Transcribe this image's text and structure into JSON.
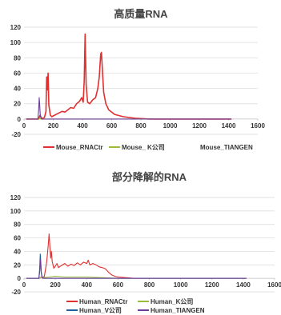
{
  "chart_data": [
    {
      "type": "line",
      "title": "高质量RNA",
      "xlim": [
        0,
        1600
      ],
      "ylim": [
        -20,
        120
      ],
      "xticks": [
        0,
        200,
        400,
        600,
        800,
        1000,
        1200,
        1400,
        1600
      ],
      "yticks": [
        -20,
        0,
        20,
        40,
        60,
        80,
        100,
        120
      ],
      "legend_position": "bottom",
      "series": [
        {
          "name": "Mouse_RNACtr",
          "color": "#e03030",
          "x": [
            15,
            100,
            105,
            110,
            115,
            120,
            130,
            140,
            150,
            155,
            160,
            165,
            170,
            175,
            180,
            190,
            200,
            220,
            240,
            260,
            280,
            300,
            320,
            340,
            360,
            380,
            395,
            405,
            412,
            418,
            425,
            435,
            450,
            470,
            490,
            505,
            515,
            525,
            530,
            535,
            545,
            560,
            580,
            620,
            680,
            760,
            860,
            1000,
            1200,
            1420
          ],
          "y": [
            0,
            0,
            3,
            5,
            3,
            1,
            1,
            2,
            10,
            55,
            38,
            60,
            18,
            12,
            5,
            3,
            4,
            6,
            8,
            10,
            9,
            12,
            15,
            14,
            20,
            23,
            28,
            22,
            50,
            111,
            45,
            22,
            20,
            25,
            28,
            40,
            55,
            85,
            87,
            70,
            35,
            20,
            12,
            6,
            3,
            1,
            0,
            0,
            0,
            0
          ]
        },
        {
          "name": "Mouse_ K公司",
          "color": "#9bbb3b",
          "x": [
            15,
            100,
            108,
            115,
            200,
            400,
            600,
            1000,
            1420
          ],
          "y": [
            0,
            0,
            1,
            0,
            0,
            0,
            0,
            0,
            0
          ]
        },
        {
          "name": "Mouse_TIANGEN",
          "color": "#6a3d9a",
          "x": [
            15,
            95,
            100,
            104,
            107,
            110,
            114,
            120,
            200,
            400,
            600,
            1000,
            1420
          ],
          "y": [
            0,
            0,
            12,
            28,
            20,
            8,
            2,
            0,
            0,
            0,
            0,
            0,
            0
          ]
        }
      ]
    },
    {
      "type": "line",
      "title": "部分降解的RNA",
      "xlim": [
        0,
        1600
      ],
      "ylim": [
        -20,
        120
      ],
      "xticks": [
        0,
        200,
        400,
        600,
        800,
        1000,
        1200,
        1400,
        1600
      ],
      "yticks": [
        -20,
        0,
        20,
        40,
        60,
        80,
        100,
        120
      ],
      "legend_position": "bottom",
      "series": [
        {
          "name": "Human_RNACtr",
          "color": "#e03030",
          "x": [
            15,
            100,
            108,
            115,
            130,
            145,
            155,
            160,
            165,
            170,
            175,
            180,
            185,
            190,
            200,
            210,
            220,
            240,
            260,
            280,
            300,
            320,
            340,
            360,
            380,
            400,
            410,
            420,
            440,
            460,
            480,
            500,
            520,
            540,
            560,
            580,
            600,
            650,
            700,
            800,
            900,
            1000,
            1200,
            1420
          ],
          "y": [
            0,
            0,
            2,
            1,
            3,
            25,
            50,
            66,
            48,
            30,
            40,
            25,
            20,
            15,
            18,
            22,
            16,
            19,
            22,
            18,
            21,
            19,
            23,
            20,
            24,
            22,
            27,
            20,
            22,
            20,
            17,
            16,
            14,
            9,
            5,
            3,
            2,
            1,
            0,
            0,
            0,
            0,
            0,
            0
          ]
        },
        {
          "name": "Human_K公司",
          "color": "#9bbb3b",
          "x": [
            15,
            100,
            108,
            115,
            160,
            200,
            260,
            320,
            400,
            500,
            600,
            800,
            1000,
            1420
          ],
          "y": [
            0,
            0,
            2,
            1,
            2,
            3,
            2,
            2,
            2,
            1,
            0,
            0,
            0,
            0
          ]
        },
        {
          "name": "Human_V公司",
          "color": "#1f5f9a",
          "x": [
            15,
            95,
            100,
            104,
            107,
            110,
            115,
            120,
            200,
            400,
            600,
            1000,
            1420
          ],
          "y": [
            0,
            0,
            15,
            36,
            25,
            10,
            2,
            0,
            0,
            0,
            0,
            0,
            0
          ]
        },
        {
          "name": "Human_TIANGEN",
          "color": "#6a3d9a",
          "x": [
            15,
            95,
            100,
            104,
            107,
            110,
            115,
            120,
            200,
            400,
            600,
            1000,
            1420
          ],
          "y": [
            0,
            0,
            10,
            28,
            20,
            8,
            2,
            0,
            0,
            0,
            0,
            0,
            0
          ]
        }
      ]
    }
  ]
}
